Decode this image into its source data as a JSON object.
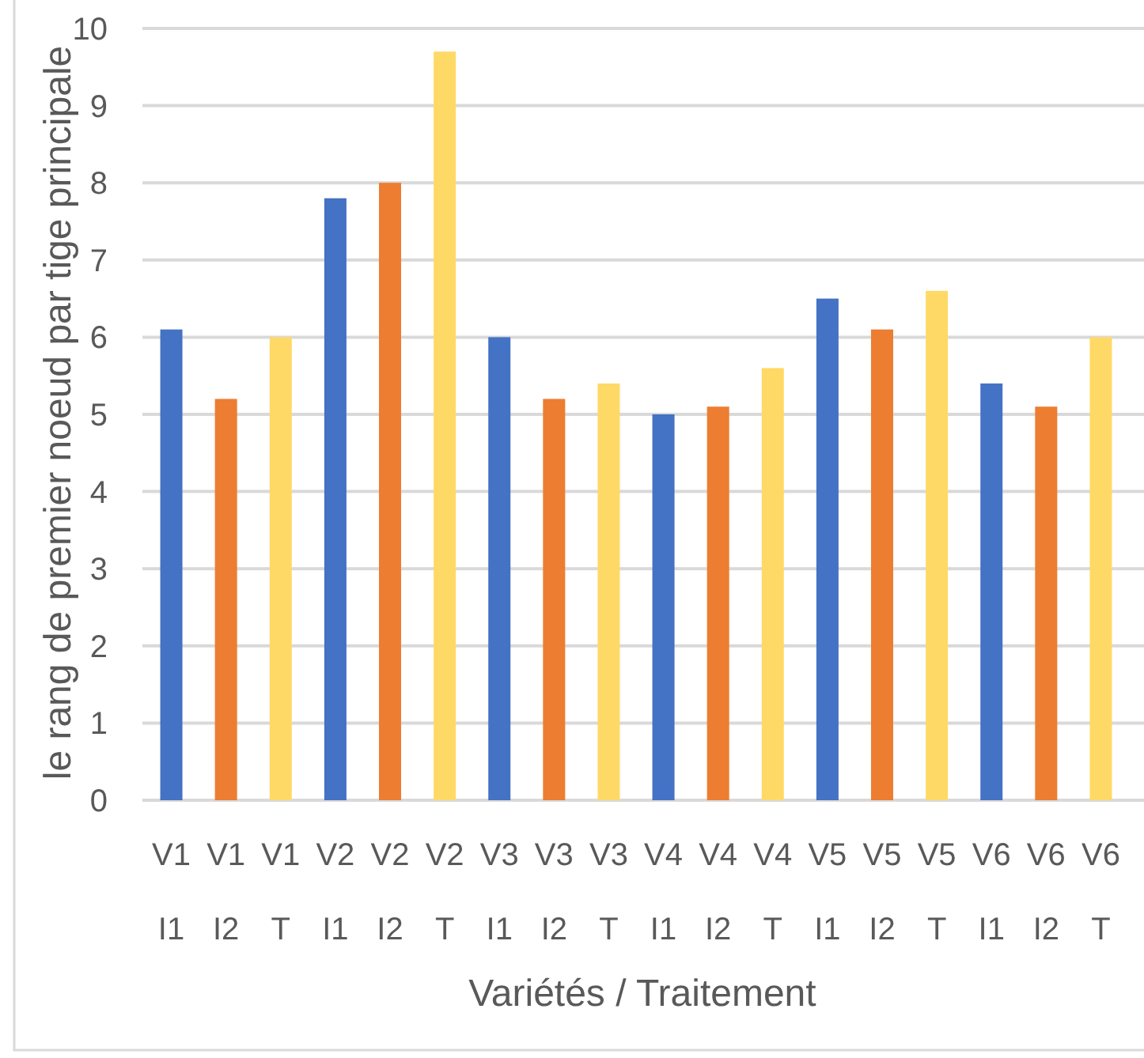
{
  "chart_data": {
    "type": "bar",
    "categories": [
      "V1\nI1",
      "V1\nI2",
      "V1\nT",
      "V2\nI1",
      "V2\nI2",
      "V2\nT",
      "V3\nI1",
      "V3\nI2",
      "V3\nT",
      "V4\nI1",
      "V4\nI2",
      "V4\nT",
      "V5\nI1",
      "V5\nI2",
      "V5\nT",
      "V6\nI1",
      "V6\nI2",
      "V6\nT"
    ],
    "values": [
      6.1,
      5.2,
      6.0,
      7.8,
      8.0,
      9.7,
      6.0,
      5.2,
      5.4,
      5.0,
      5.1,
      5.6,
      6.5,
      6.1,
      6.6,
      5.4,
      5.1,
      6.0
    ],
    "colors": [
      "#4472c4",
      "#ed7d31",
      "#ffd966",
      "#4472c4",
      "#ed7d31",
      "#ffd966",
      "#4472c4",
      "#ed7d31",
      "#ffd966",
      "#4472c4",
      "#ed7d31",
      "#ffd966",
      "#4472c4",
      "#ed7d31",
      "#ffd966",
      "#4472c4",
      "#ed7d31",
      "#ffd966"
    ],
    "xlabel": "Variétés / Traitement",
    "ylabel": "le rang de premier noeud par tige principale",
    "ylim": [
      0,
      10
    ],
    "yticks": [
      0,
      1,
      2,
      3,
      4,
      5,
      6,
      7,
      8,
      9,
      10
    ],
    "grid": "y"
  }
}
